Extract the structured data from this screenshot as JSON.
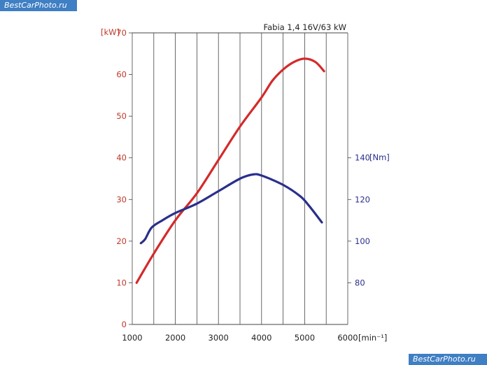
{
  "watermarks": {
    "top": "BestCarPhoto.ru",
    "bottom": "BestCarPhoto.ru"
  },
  "colors": {
    "power": "#d42a2a",
    "torque": "#2a2f8c",
    "grid": "#444444",
    "left_axis_text": "#c0392b",
    "right_axis_text": "#2a2f8c",
    "watermark_bg": "#3f7fc4"
  },
  "chart_data": {
    "type": "line",
    "title": "Fabia 1,4 16V/63 kW",
    "xlabel": "[min⁻¹]",
    "ylabel_left": "[kW]",
    "ylabel_right": "[Nm]",
    "xlim": [
      1000,
      6000
    ],
    "ylim_left": [
      0,
      70
    ],
    "ylim_right": [
      60,
      200
    ],
    "x_ticks": [
      "1000",
      "2000",
      "3000",
      "4000",
      "5000",
      "6000"
    ],
    "y_left_ticks": [
      "0",
      "10",
      "20",
      "30",
      "40",
      "50",
      "60",
      "70"
    ],
    "y_right_ticks": [
      "80",
      "100",
      "120",
      "140"
    ],
    "grid": true,
    "series": [
      {
        "axis": "left",
        "x": [
          1100,
          1500,
          2000,
          2500,
          3000,
          3500,
          4000,
          4250,
          4500,
          4750,
          5000,
          5250,
          5450
        ],
        "values": [
          10,
          17,
          25,
          31.5,
          39.5,
          47.5,
          54.5,
          58.5,
          61.2,
          63,
          63.8,
          63,
          60.8
        ]
      },
      {
        "axis": "right",
        "x": [
          1200,
          1300,
          1450,
          1700,
          2000,
          2500,
          3000,
          3500,
          3800,
          4000,
          4500,
          4900,
          5100,
          5400
        ],
        "values": [
          99,
          101,
          106.5,
          110,
          113.5,
          118,
          124,
          130,
          132,
          131.5,
          127,
          121.5,
          117,
          109
        ]
      }
    ]
  }
}
